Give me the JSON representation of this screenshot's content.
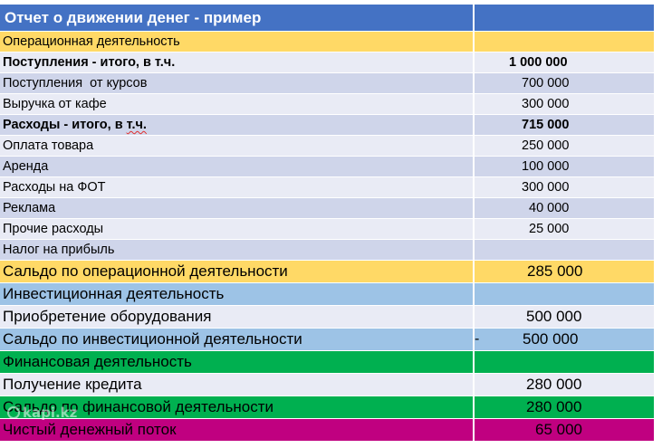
{
  "table": {
    "title": "Отчет о движении денег - пример",
    "rows": [
      {
        "label": "Операционная деятельность",
        "value": ""
      },
      {
        "label": "Поступления - итого, в т.ч.",
        "value": "1 000 000"
      },
      {
        "label": "Поступления  от курсов",
        "value": "700 000"
      },
      {
        "label": "Выручка от кафе",
        "value": "300 000"
      },
      {
        "label_main": "Расходы - итого, в ",
        "label_underlined": "т.ч.",
        "value": "715 000"
      },
      {
        "label": "Оплата товара",
        "value": "250 000"
      },
      {
        "label": "Аренда",
        "value": "100 000"
      },
      {
        "label": "Расходы на ФОТ",
        "value": "300 000"
      },
      {
        "label": "Реклама",
        "value": "40 000"
      },
      {
        "label": "Прочие расходы",
        "value": "25 000"
      },
      {
        "label": "Налог на прибыль",
        "value": ""
      },
      {
        "label": "Сальдо по операционной деятельности",
        "value": "285 000"
      },
      {
        "label": "Инвестиционная деятельность",
        "value": ""
      },
      {
        "label": "Приобретение оборудования",
        "value": "500 000"
      },
      {
        "label": "Сальдо по инвестиционной деятельности",
        "sign": "-",
        "value": "500 000"
      },
      {
        "label": "Финансовая деятельность",
        "value": ""
      },
      {
        "label": "Получение кредита",
        "value": "280 000"
      },
      {
        "label": "Сальдо по финансовой деятельности",
        "value": "280 000"
      },
      {
        "label": "Чистый денежный поток",
        "value": "65 000"
      }
    ]
  },
  "colors": {
    "header": "#4472c4",
    "operating": "#ffd966",
    "investing": "#9dc3e6",
    "financing": "#00b050",
    "net_flow": "#c00080"
  },
  "watermark": {
    "text": "kapi.kz",
    "icon": "watermark-logo-icon"
  }
}
